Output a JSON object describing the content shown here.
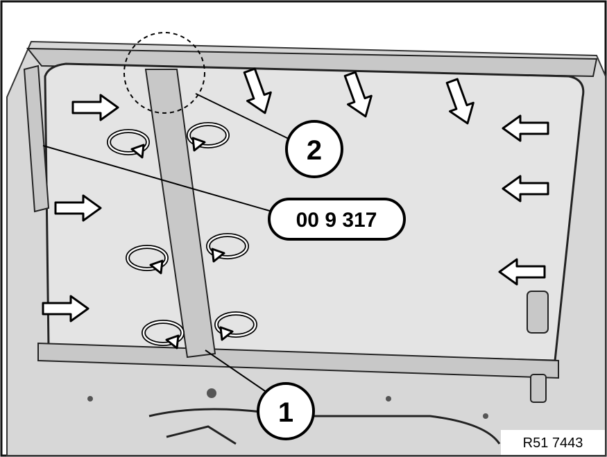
{
  "callouts": {
    "item_1": "1",
    "item_2": "2",
    "tool_number": "00 9 317"
  },
  "figure_reference": "R51 7443"
}
